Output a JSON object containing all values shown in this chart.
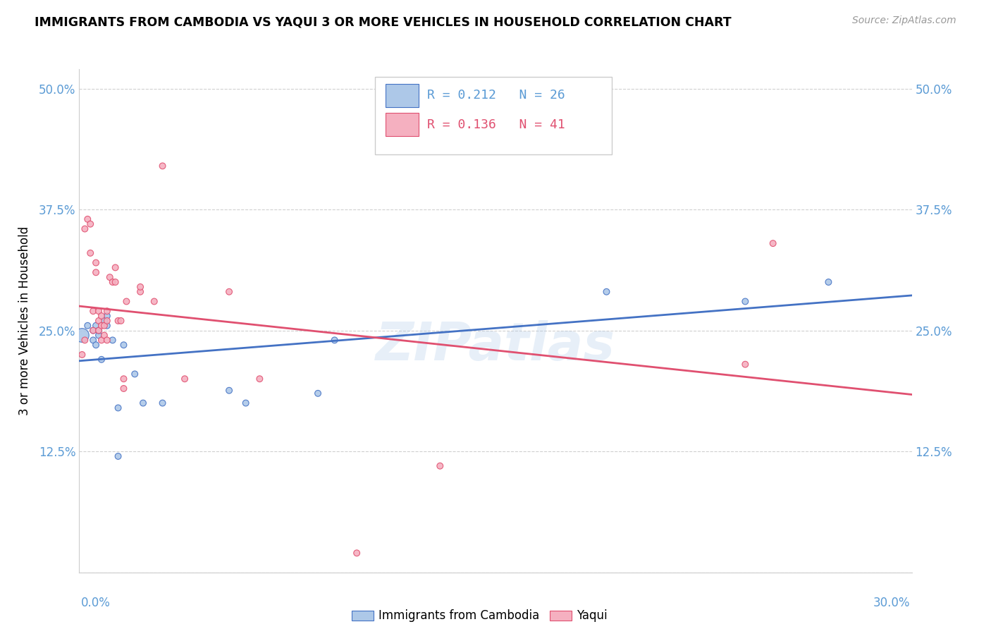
{
  "title": "IMMIGRANTS FROM CAMBODIA VS YAQUI 3 OR MORE VEHICLES IN HOUSEHOLD CORRELATION CHART",
  "source": "Source: ZipAtlas.com",
  "ylabel": "3 or more Vehicles in Household",
  "xlim": [
    0.0,
    0.3
  ],
  "ylim": [
    0.0,
    0.52
  ],
  "yticks": [
    0.0,
    0.125,
    0.25,
    0.375,
    0.5
  ],
  "ytick_labels": [
    "",
    "12.5%",
    "25.0%",
    "37.5%",
    "50.0%"
  ],
  "xtick_left": "0.0%",
  "xtick_right": "30.0%",
  "legend_r1": "R = 0.212",
  "legend_n1": "N = 26",
  "legend_r2": "R = 0.136",
  "legend_n2": "N = 41",
  "series1_label": "Immigrants from Cambodia",
  "series2_label": "Yaqui",
  "series1_fill": "#adc8e8",
  "series2_fill": "#f5b0c0",
  "series1_edge": "#4472c4",
  "series2_edge": "#e05070",
  "series1_line": "#4472c4",
  "series2_line": "#e05070",
  "watermark": "ZIPatlas",
  "cambodia_x": [
    0.001,
    0.003,
    0.005,
    0.005,
    0.006,
    0.006,
    0.007,
    0.007,
    0.008,
    0.009,
    0.01,
    0.01,
    0.012,
    0.014,
    0.014,
    0.016,
    0.02,
    0.023,
    0.03,
    0.054,
    0.06,
    0.086,
    0.092,
    0.19,
    0.24,
    0.27
  ],
  "cambodia_y": [
    0.245,
    0.255,
    0.25,
    0.24,
    0.255,
    0.235,
    0.245,
    0.25,
    0.22,
    0.26,
    0.265,
    0.255,
    0.24,
    0.12,
    0.17,
    0.235,
    0.205,
    0.175,
    0.175,
    0.188,
    0.175,
    0.185,
    0.24,
    0.29,
    0.28,
    0.3
  ],
  "cambodia_sizes": [
    200,
    40,
    40,
    40,
    40,
    40,
    40,
    40,
    40,
    50,
    40,
    40,
    40,
    40,
    40,
    40,
    40,
    40,
    40,
    40,
    40,
    40,
    40,
    40,
    40,
    40
  ],
  "yaqui_x": [
    0.001,
    0.002,
    0.002,
    0.003,
    0.004,
    0.004,
    0.005,
    0.005,
    0.006,
    0.006,
    0.007,
    0.007,
    0.007,
    0.008,
    0.008,
    0.008,
    0.009,
    0.009,
    0.01,
    0.01,
    0.01,
    0.011,
    0.012,
    0.013,
    0.013,
    0.014,
    0.015,
    0.016,
    0.016,
    0.017,
    0.022,
    0.022,
    0.027,
    0.03,
    0.038,
    0.054,
    0.065,
    0.1,
    0.13,
    0.24,
    0.25
  ],
  "yaqui_y": [
    0.225,
    0.24,
    0.355,
    0.365,
    0.33,
    0.36,
    0.25,
    0.27,
    0.31,
    0.32,
    0.25,
    0.26,
    0.27,
    0.24,
    0.255,
    0.265,
    0.245,
    0.255,
    0.24,
    0.26,
    0.27,
    0.305,
    0.3,
    0.3,
    0.315,
    0.26,
    0.26,
    0.19,
    0.2,
    0.28,
    0.29,
    0.295,
    0.28,
    0.42,
    0.2,
    0.29,
    0.2,
    0.02,
    0.11,
    0.215,
    0.34
  ],
  "yaqui_sizes": [
    40,
    40,
    40,
    40,
    40,
    40,
    40,
    40,
    40,
    40,
    40,
    40,
    40,
    40,
    40,
    40,
    40,
    40,
    40,
    40,
    40,
    40,
    40,
    40,
    40,
    40,
    40,
    40,
    40,
    40,
    40,
    40,
    40,
    40,
    40,
    40,
    40,
    40,
    40,
    40,
    40
  ]
}
